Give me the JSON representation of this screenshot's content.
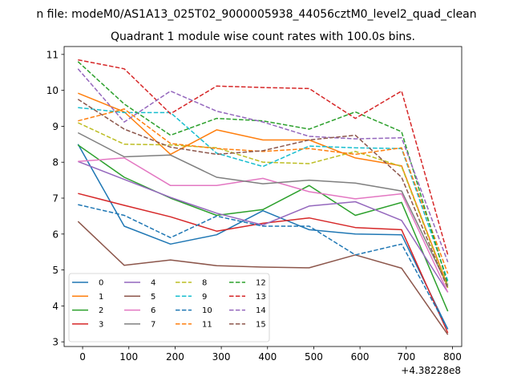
{
  "figure": {
    "suptitle": "n file: modeM0/AS1A13_025T02_9000005938_44056cztM0_level2_quad_clean",
    "title": "Quadrant 1 module wise count rates with 100.0s bins.",
    "x_offset_label": "+4.38228e8"
  },
  "chart_data": {
    "type": "line",
    "title": "Quadrant 1 module wise count rates with 100.0s bins.",
    "xlabel": "",
    "ylabel": "",
    "x_offset": "+4.38228e8",
    "x": [
      -10,
      90,
      190,
      290,
      390,
      490,
      590,
      690,
      790
    ],
    "xlim": [
      -40,
      820
    ],
    "ylim": [
      2.87,
      11.22
    ],
    "xticks": [
      0,
      100,
      200,
      300,
      400,
      500,
      600,
      700,
      800
    ],
    "yticks": [
      3,
      4,
      5,
      6,
      7,
      8,
      9,
      10,
      11
    ],
    "grid": false,
    "legend_position": "lower-left",
    "legend_columns": 4,
    "series": [
      {
        "name": "0",
        "color": "#1f77b4",
        "dash": "solid",
        "values": [
          8.5,
          6.22,
          5.72,
          5.98,
          6.65,
          6.12,
          6.0,
          5.98,
          3.35
        ]
      },
      {
        "name": "1",
        "color": "#ff7f0e",
        "dash": "solid",
        "values": [
          9.92,
          9.4,
          8.22,
          8.9,
          8.62,
          8.62,
          8.12,
          7.9,
          4.55
        ]
      },
      {
        "name": "2",
        "color": "#2ca02c",
        "dash": "solid",
        "values": [
          8.48,
          7.58,
          7.0,
          6.52,
          6.68,
          7.35,
          6.52,
          6.88,
          3.85
        ]
      },
      {
        "name": "3",
        "color": "#d62728",
        "dash": "solid",
        "values": [
          7.13,
          6.8,
          6.48,
          6.08,
          6.3,
          6.45,
          6.18,
          6.12,
          3.25
        ]
      },
      {
        "name": "4",
        "color": "#9467bd",
        "dash": "solid",
        "values": [
          8.02,
          7.52,
          7.02,
          6.58,
          6.25,
          6.78,
          6.9,
          6.38,
          4.38
        ]
      },
      {
        "name": "5",
        "color": "#8c564b",
        "dash": "solid",
        "values": [
          6.35,
          5.13,
          5.28,
          5.12,
          5.08,
          5.06,
          5.42,
          5.05,
          3.2
        ]
      },
      {
        "name": "6",
        "color": "#e377c2",
        "dash": "solid",
        "values": [
          8.02,
          8.12,
          7.35,
          7.35,
          7.55,
          7.18,
          6.98,
          7.12,
          4.38
        ]
      },
      {
        "name": "7",
        "color": "#7f7f7f",
        "dash": "solid",
        "values": [
          8.82,
          8.15,
          8.2,
          7.58,
          7.4,
          7.5,
          7.42,
          7.2,
          4.55
        ]
      },
      {
        "name": "8",
        "color": "#bcbd22",
        "dash": "dashed",
        "values": [
          9.1,
          8.5,
          8.48,
          8.4,
          8.0,
          7.96,
          8.3,
          7.88,
          4.5
        ]
      },
      {
        "name": "9",
        "color": "#17becf",
        "dash": "dashed",
        "values": [
          9.52,
          9.38,
          9.38,
          8.25,
          7.88,
          8.45,
          8.4,
          8.38,
          4.7
        ]
      },
      {
        "name": "10",
        "color": "#1f77b4",
        "dash": "dashed",
        "values": [
          6.82,
          6.52,
          5.9,
          6.5,
          6.22,
          6.22,
          5.42,
          5.72,
          3.35
        ]
      },
      {
        "name": "11",
        "color": "#ff7f0e",
        "dash": "dashed",
        "values": [
          9.15,
          9.48,
          8.52,
          8.38,
          8.3,
          8.38,
          8.22,
          8.4,
          4.9
        ]
      },
      {
        "name": "12",
        "color": "#2ca02c",
        "dash": "dashed",
        "values": [
          10.8,
          9.62,
          8.75,
          9.22,
          9.15,
          8.92,
          9.4,
          8.85,
          4.6
        ]
      },
      {
        "name": "13",
        "color": "#d62728",
        "dash": "dashed",
        "values": [
          10.85,
          10.6,
          9.35,
          10.12,
          10.08,
          10.05,
          9.22,
          9.98,
          5.42
        ]
      },
      {
        "name": "14",
        "color": "#9467bd",
        "dash": "dashed",
        "values": [
          10.6,
          9.12,
          9.98,
          9.42,
          9.12,
          8.72,
          8.65,
          8.68,
          5.22
        ]
      },
      {
        "name": "15",
        "color": "#8c564b",
        "dash": "dashed",
        "values": [
          9.75,
          8.92,
          8.42,
          8.22,
          8.32,
          8.62,
          8.75,
          7.58,
          4.48
        ]
      }
    ]
  }
}
